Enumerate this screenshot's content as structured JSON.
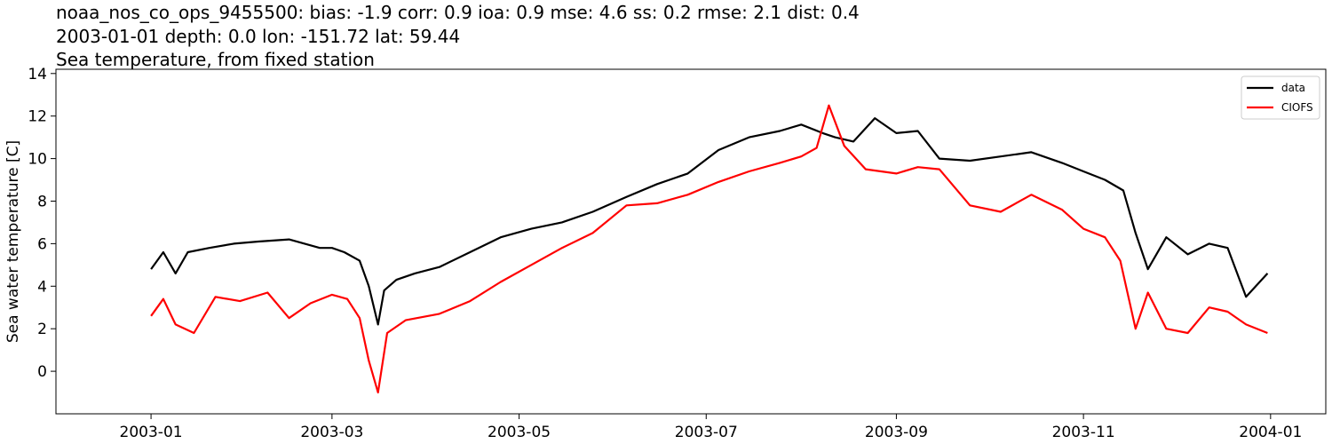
{
  "title": {
    "line1": "noaa_nos_co_ops_9455500: bias: -1.9  corr: 0.9  ioa: 0.9  mse: 4.6  ss: 0.2  rmse: 2.1  dist: 0.4",
    "line2": "2003-01-01 depth: 0.0 lon: -151.72 lat: 59.44",
    "line3": "Sea temperature, from fixed station"
  },
  "chart_data": {
    "type": "line",
    "xlabel": "",
    "ylabel": "Sea water temperature [C]",
    "xlim": [
      "2002-12-01",
      "2004-01-19"
    ],
    "ylim": [
      -2,
      14.2
    ],
    "x_ticks": [
      "2003-01",
      "2003-03",
      "2003-05",
      "2003-07",
      "2003-09",
      "2003-11",
      "2004-01"
    ],
    "y_ticks": [
      0,
      2,
      4,
      6,
      8,
      10,
      12,
      14
    ],
    "grid": false,
    "legend": "top-right",
    "series": [
      {
        "name": "data",
        "color": "#000000",
        "x": [
          "2003-01-01",
          "2003-01-05",
          "2003-01-09",
          "2003-01-13",
          "2003-01-20",
          "2003-01-28",
          "2003-02-05",
          "2003-02-15",
          "2003-02-25",
          "2003-03-01",
          "2003-03-05",
          "2003-03-10",
          "2003-03-13",
          "2003-03-16",
          "2003-03-18",
          "2003-03-22",
          "2003-03-28",
          "2003-04-05",
          "2003-04-15",
          "2003-04-25",
          "2003-05-05",
          "2003-05-15",
          "2003-05-25",
          "2003-06-05",
          "2003-06-15",
          "2003-06-25",
          "2003-07-05",
          "2003-07-15",
          "2003-07-25",
          "2003-08-01",
          "2003-08-08",
          "2003-08-12",
          "2003-08-18",
          "2003-08-25",
          "2003-09-01",
          "2003-09-08",
          "2003-09-15",
          "2003-09-25",
          "2003-10-05",
          "2003-10-15",
          "2003-10-25",
          "2003-11-01",
          "2003-11-08",
          "2003-11-14",
          "2003-11-18",
          "2003-11-22",
          "2003-11-28",
          "2003-12-05",
          "2003-12-12",
          "2003-12-18",
          "2003-12-24",
          "2003-12-31"
        ],
        "values": [
          4.8,
          5.6,
          4.6,
          5.6,
          5.8,
          6.0,
          6.1,
          6.2,
          5.8,
          5.8,
          5.6,
          5.2,
          4.0,
          2.2,
          3.8,
          4.3,
          4.6,
          4.9,
          5.6,
          6.3,
          6.7,
          7.0,
          7.5,
          8.2,
          8.8,
          9.3,
          10.4,
          11.0,
          11.3,
          11.6,
          11.2,
          11.0,
          10.8,
          11.9,
          11.2,
          11.3,
          10.0,
          9.9,
          10.1,
          10.3,
          9.8,
          9.4,
          9.0,
          8.5,
          6.5,
          4.8,
          6.3,
          5.5,
          6.0,
          5.8,
          3.5,
          4.6
        ]
      },
      {
        "name": "CIOFS",
        "color": "#ff0000",
        "x": [
          "2003-01-01",
          "2003-01-05",
          "2003-01-09",
          "2003-01-15",
          "2003-01-22",
          "2003-01-30",
          "2003-02-08",
          "2003-02-15",
          "2003-02-22",
          "2003-03-01",
          "2003-03-06",
          "2003-03-10",
          "2003-03-13",
          "2003-03-16",
          "2003-03-19",
          "2003-03-25",
          "2003-04-05",
          "2003-04-15",
          "2003-04-25",
          "2003-05-05",
          "2003-05-15",
          "2003-05-25",
          "2003-06-05",
          "2003-06-15",
          "2003-06-25",
          "2003-07-05",
          "2003-07-15",
          "2003-07-25",
          "2003-08-01",
          "2003-08-06",
          "2003-08-10",
          "2003-08-15",
          "2003-08-22",
          "2003-09-01",
          "2003-09-08",
          "2003-09-15",
          "2003-09-25",
          "2003-10-05",
          "2003-10-15",
          "2003-10-25",
          "2003-11-01",
          "2003-11-08",
          "2003-11-13",
          "2003-11-18",
          "2003-11-22",
          "2003-11-28",
          "2003-12-05",
          "2003-12-12",
          "2003-12-18",
          "2003-12-24",
          "2003-12-31"
        ],
        "values": [
          2.6,
          3.4,
          2.2,
          1.8,
          3.5,
          3.3,
          3.7,
          2.5,
          3.2,
          3.6,
          3.4,
          2.5,
          0.5,
          -1.0,
          1.8,
          2.4,
          2.7,
          3.3,
          4.2,
          5.0,
          5.8,
          6.5,
          7.8,
          7.9,
          8.3,
          8.9,
          9.4,
          9.8,
          10.1,
          10.5,
          12.5,
          10.6,
          9.5,
          9.3,
          9.6,
          9.5,
          7.8,
          7.5,
          8.3,
          7.6,
          6.7,
          6.3,
          5.2,
          2.0,
          3.7,
          2.0,
          1.8,
          3.0,
          2.8,
          2.2,
          1.8
        ]
      }
    ]
  }
}
